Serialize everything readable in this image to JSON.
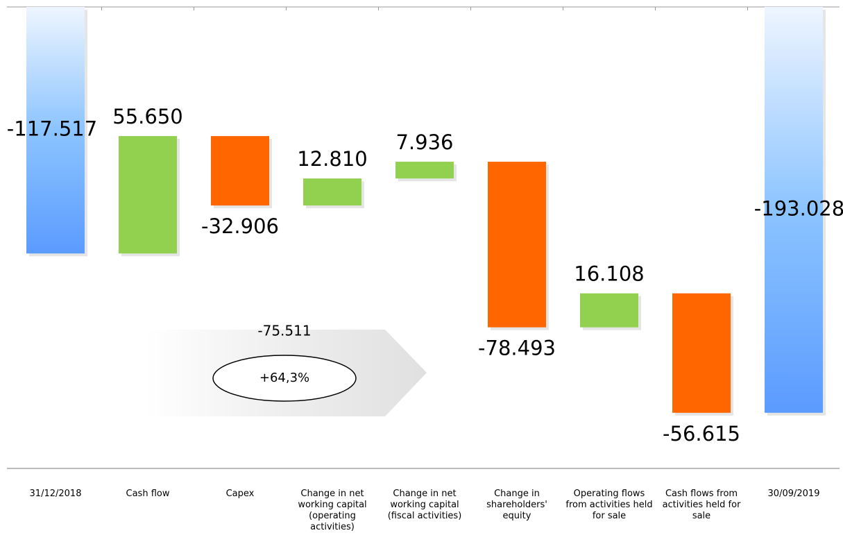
{
  "chart_data": {
    "type": "waterfall",
    "categories": [
      "31/12/2018",
      "Cash flow",
      "Capex",
      "Change in net working capital (operating activities)",
      "Change in net working capital (fiscal activities)",
      "Change in shareholders' equity",
      "Operating flows from activities held for sale",
      "Cash flows from activities held for sale",
      "30/09/2019"
    ],
    "values": [
      -117.517,
      55.65,
      -32.906,
      12.81,
      7.936,
      -78.493,
      16.108,
      -56.615,
      -193.028
    ],
    "value_labels": [
      "-117.517",
      "55.650",
      "-32.906",
      "12.810",
      "7.936",
      "-78.493",
      "16.108",
      "-56.615",
      "-193.028"
    ],
    "totals": [
      true,
      false,
      false,
      false,
      false,
      false,
      false,
      false,
      true
    ],
    "colors": {
      "increase": "#92d050",
      "decrease": "#ff6600",
      "total": "#5b9bff"
    },
    "annotations": [
      "-75.511",
      "+64,3%"
    ]
  }
}
